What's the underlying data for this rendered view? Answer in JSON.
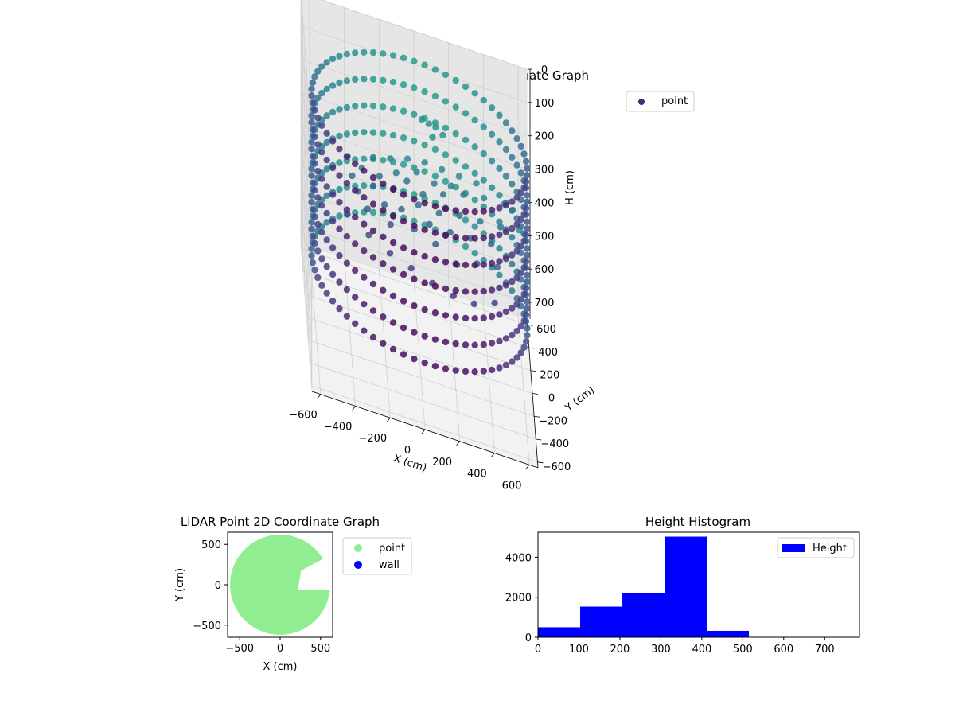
{
  "chart_data": [
    {
      "type": "scatter3d",
      "title": "LiDAR Point 3D Coordinate Graph",
      "xlabel": "X (cm)",
      "ylabel": "Y (cm)",
      "zlabel": "H (cm)",
      "xlim": [
        -650,
        650
      ],
      "ylim": [
        -650,
        650
      ],
      "zlim": [
        0,
        750
      ],
      "z_inverted": true,
      "x_ticks": [
        -600,
        -400,
        -200,
        0,
        200,
        400,
        600
      ],
      "y_ticks": [
        -600,
        -400,
        -200,
        0,
        200,
        400,
        600
      ],
      "z_ticks": [
        0,
        100,
        200,
        300,
        400,
        500,
        600,
        700
      ],
      "colormap": "viridis",
      "legend": {
        "placement": "top-right",
        "entries": [
          {
            "label": "point",
            "color": "#472c7a"
          }
        ]
      },
      "series": [
        {
          "name": "point",
          "wall": {
            "radius": 620,
            "levels": [
              80,
              160,
              240,
              320,
              400,
              480,
              560
            ],
            "ring_samples": 64
          },
          "interior": [
            [
              -380,
              150,
              330
            ],
            [
              -350,
              60,
              340
            ],
            [
              -320,
              220,
              320
            ],
            [
              -300,
              -40,
              350
            ],
            [
              -260,
              120,
              330
            ],
            [
              -220,
              200,
              320
            ],
            [
              -200,
              20,
              340
            ],
            [
              -170,
              -80,
              360
            ],
            [
              -140,
              160,
              330
            ],
            [
              -100,
              60,
              350
            ],
            [
              -60,
              240,
              320
            ],
            [
              -30,
              -20,
              370
            ],
            [
              0,
              120,
              340
            ],
            [
              30,
              200,
              330
            ],
            [
              60,
              40,
              360
            ],
            [
              90,
              -60,
              380
            ],
            [
              120,
              140,
              350
            ],
            [
              150,
              260,
              330
            ],
            [
              180,
              60,
              370
            ],
            [
              210,
              -120,
              400
            ],
            [
              240,
              180,
              350
            ],
            [
              270,
              320,
              330
            ],
            [
              300,
              100,
              380
            ],
            [
              330,
              -20,
              410
            ],
            [
              360,
              220,
              360
            ],
            [
              390,
              380,
              340
            ],
            [
              420,
              140,
              390
            ],
            [
              450,
              40,
              420
            ],
            [
              480,
              260,
              370
            ],
            [
              510,
              420,
              350
            ],
            [
              -250,
              320,
              310
            ],
            [
              -150,
              360,
              310
            ],
            [
              -50,
              380,
              300
            ],
            [
              50,
              400,
              300
            ],
            [
              150,
              420,
              310
            ],
            [
              250,
              440,
              320
            ],
            [
              350,
              460,
              330
            ],
            [
              -400,
              280,
              320
            ],
            [
              -420,
              -120,
              360
            ],
            [
              -300,
              -180,
              380
            ],
            [
              -180,
              -220,
              400
            ],
            [
              -60,
              -260,
              410
            ],
            [
              60,
              -300,
              420
            ],
            [
              180,
              -320,
              430
            ],
            [
              300,
              -300,
              440
            ],
            [
              420,
              -260,
              430
            ],
            [
              100,
              300,
              320
            ],
            [
              200,
              360,
              330
            ],
            [
              -120,
              280,
              320
            ],
            [
              0,
              320,
              310
            ],
            [
              80,
              520,
              220
            ],
            [
              120,
              540,
              230
            ],
            [
              160,
              520,
              240
            ],
            [
              40,
              540,
              220
            ],
            [
              100,
              500,
              250
            ],
            [
              560,
              480,
              380
            ],
            [
              600,
              500,
              440
            ]
          ]
        }
      ]
    },
    {
      "type": "scatter",
      "title": "LiDAR Point 2D Coordinate Graph",
      "xlabel": "X (cm)",
      "ylabel": "Y (cm)",
      "xlim": [
        -650,
        650
      ],
      "ylim": [
        -650,
        650
      ],
      "x_ticks": [
        -500,
        0,
        500
      ],
      "y_ticks": [
        -500,
        0,
        500
      ],
      "legend": {
        "placement": "outside-right",
        "entries": [
          {
            "label": "point",
            "color": "#90ee90"
          },
          {
            "label": "wall",
            "color": "#0000ff"
          }
        ]
      },
      "series": [
        {
          "name": "point",
          "color": "#90ee90",
          "shape": "disc with notch on the right",
          "radius": 620,
          "notch_y_range": [
            -60,
            320
          ],
          "notch_x_start": 220
        },
        {
          "name": "wall",
          "color": "#0000ff",
          "points": []
        }
      ]
    },
    {
      "type": "bar",
      "title": "Height Histogram",
      "xlabel": "",
      "ylabel": "",
      "bin_edges": [
        0,
        103,
        206,
        309,
        412,
        515
      ],
      "values": [
        500,
        1530,
        2220,
        5030,
        320
      ],
      "xlim": [
        0,
        785
      ],
      "ylim": [
        0,
        5250
      ],
      "x_ticks": [
        0,
        100,
        200,
        300,
        400,
        500,
        600,
        700
      ],
      "y_ticks": [
        0,
        2000,
        4000
      ],
      "color": "#0000ff",
      "legend": {
        "placement": "top-right",
        "entries": [
          {
            "label": "Height",
            "color": "#0000ff"
          }
        ]
      }
    }
  ]
}
